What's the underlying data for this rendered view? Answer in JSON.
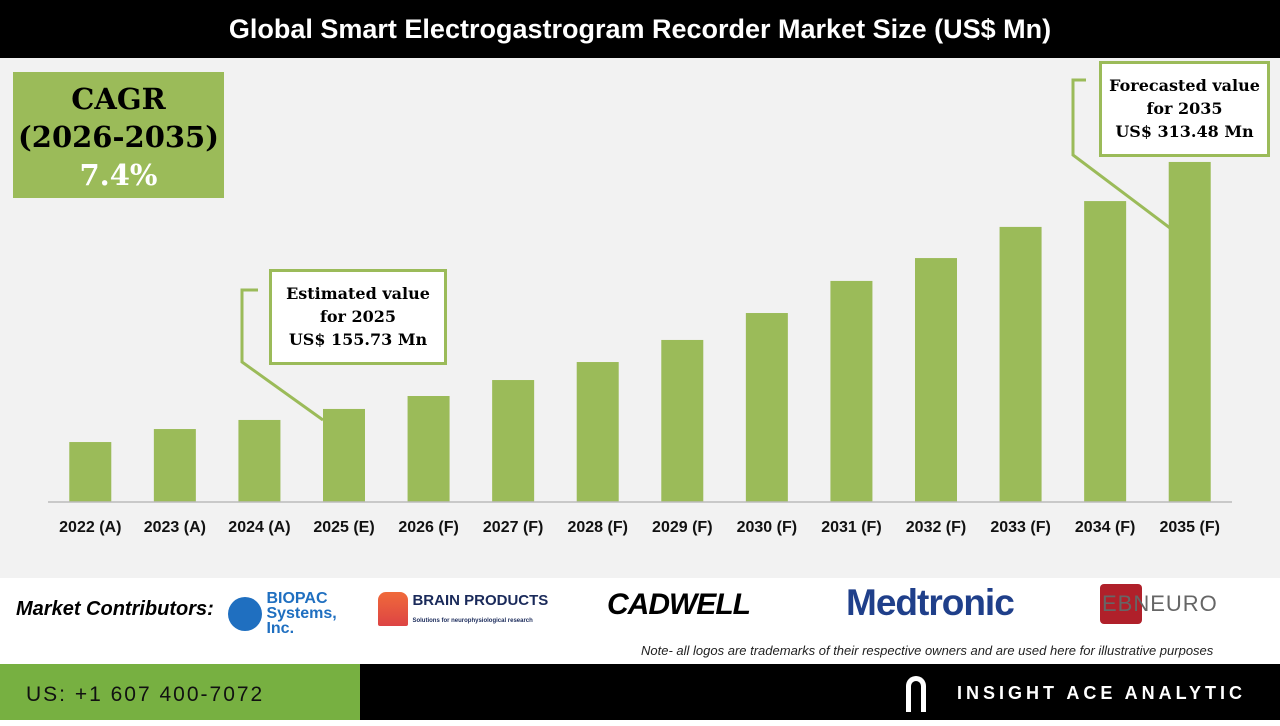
{
  "chart_data": {
    "type": "bar",
    "title": "Global Smart Electrogastrogram Recorder Market Size (US$ Mn)",
    "categories": [
      "2022 (A)",
      "2023 (A)",
      "2024 (A)",
      "2025 (E)",
      "2026 (F)",
      "2027 (F)",
      "2028 (F)",
      "2029 (F)",
      "2030 (F)",
      "2031 (F)",
      "2032 (F)",
      "2033 (F)",
      "2034 (F)",
      "2035 (F)"
    ],
    "values": [
      134.6,
      142.9,
      148.7,
      155.73,
      164.0,
      174.2,
      185.7,
      199.8,
      217.0,
      237.5,
      252.1,
      272.0,
      288.5,
      313.48
    ],
    "bar_color": "#9bbb59",
    "grid": false,
    "annotations": {
      "cagr": {
        "label": "CAGR",
        "period": "(2026-2035)",
        "value": "7.4%"
      },
      "estimated": {
        "line1": "Estimated value",
        "line2": "for 2025",
        "line3": "US$ 155.73 Mn"
      },
      "forecast": {
        "line1": "Forecasted value",
        "line2": "for 2035",
        "line3": "US$ 313.48 Mn"
      }
    }
  },
  "contributors": {
    "label": "Market Contributors:",
    "logos": [
      "BIOPAC Systems, Inc.",
      "BRAIN PRODUCTS",
      "CADWELL",
      "Medtronic",
      "EBNEURO"
    ],
    "brain_sub": "Solutions for neurophysiological research"
  },
  "note": "Note- all logos are trademarks of their respective owners and are used here for illustrative purposes",
  "footer": {
    "phone": "US: +1 607 400-7072",
    "brand": "INSIGHT ACE ANALYTIC"
  }
}
